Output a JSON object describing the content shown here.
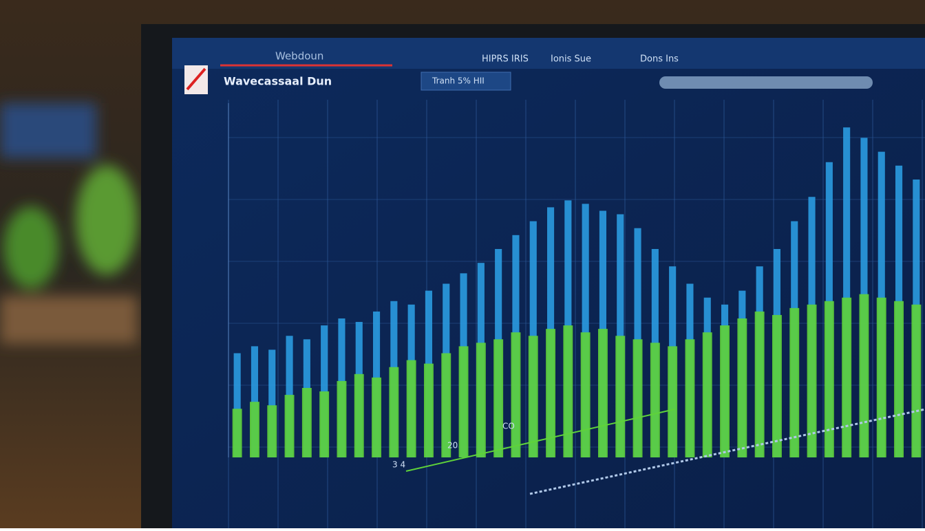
{
  "header": {
    "app_title": "Webdoun",
    "menu": [
      "HIPRS IRIS",
      "Ionis Sue",
      "Dons Ins"
    ],
    "subtitle": "Wavecassaal Dun",
    "search": "Tranh 5% HII"
  },
  "chart_data": {
    "type": "bar",
    "series": [
      {
        "color": "#2a9be0",
        "values": [
          30,
          32,
          31,
          35,
          34,
          38,
          40,
          39,
          42,
          45,
          44,
          48,
          50,
          53,
          56,
          60,
          64,
          68,
          72,
          74,
          73,
          71,
          70,
          66,
          60,
          55,
          50,
          46,
          44,
          48,
          55,
          60,
          68,
          75,
          85,
          95,
          92,
          88,
          84,
          80
        ]
      },
      {
        "color": "#5fd23a",
        "values": [
          14,
          16,
          15,
          18,
          20,
          19,
          22,
          24,
          23,
          26,
          28,
          27,
          30,
          32,
          33,
          34,
          36,
          35,
          37,
          38,
          36,
          37,
          35,
          34,
          33,
          32,
          34,
          36,
          38,
          40,
          42,
          41,
          43,
          44,
          45,
          46,
          47,
          46,
          45,
          44
        ]
      }
    ],
    "ylim": [
      0,
      100
    ],
    "annotations": [
      "CO",
      "20",
      "3 4"
    ]
  }
}
